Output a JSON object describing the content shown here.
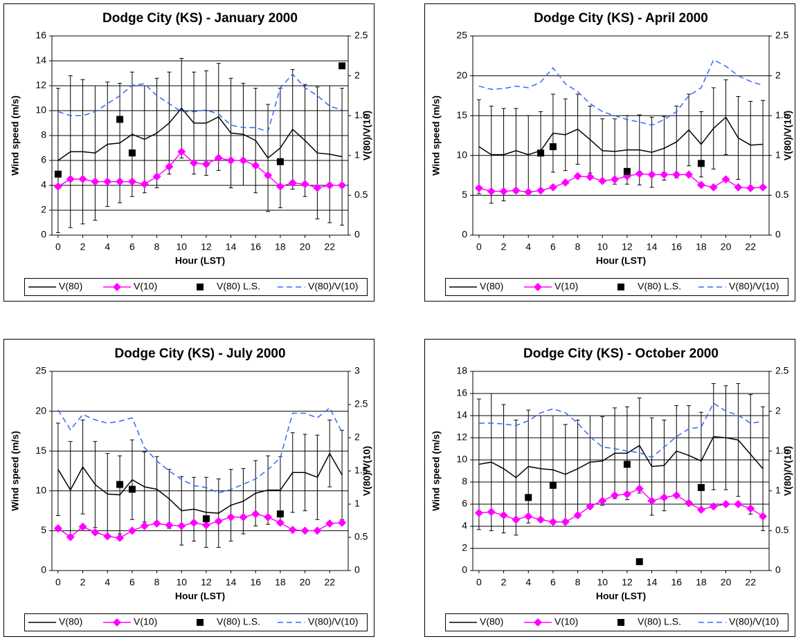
{
  "chart_data": [
    {
      "type": "line",
      "title": "Dodge City (KS) - January 2000",
      "xlabel": "Hour (LST)",
      "ylabel": "Wind speed (m/s)",
      "y2label": "V(80)/V(10)",
      "x": [
        0,
        1,
        2,
        3,
        4,
        5,
        6,
        7,
        8,
        9,
        10,
        11,
        12,
        13,
        14,
        15,
        16,
        17,
        18,
        19,
        20,
        21,
        22,
        23
      ],
      "xlim": [
        -0.5,
        23.5
      ],
      "xticks": [
        0,
        2,
        4,
        6,
        8,
        10,
        12,
        14,
        16,
        18,
        20,
        22
      ],
      "ylim": [
        0,
        16
      ],
      "yticks": [
        0,
        2,
        4,
        6,
        8,
        10,
        12,
        14,
        16
      ],
      "y2lim": [
        0,
        2.5
      ],
      "y2ticks": [
        0,
        0.5,
        1,
        1.5,
        2,
        2.5
      ],
      "grid": true,
      "series": [
        {
          "name": "V(80)",
          "color": "#000000",
          "line_style": "solid",
          "marker": "none",
          "values": [
            6.0,
            6.7,
            6.7,
            6.6,
            7.3,
            7.4,
            8.1,
            7.7,
            8.2,
            9.0,
            10.2,
            9.0,
            9.0,
            9.5,
            8.2,
            8.1,
            7.6,
            6.2,
            7.0,
            8.5,
            7.6,
            6.6,
            6.5,
            6.3
          ],
          "errors": [
            5.8,
            6.1,
            5.8,
            5.4,
            5.0,
            4.8,
            5.0,
            4.3,
            4.4,
            4.1,
            4.0,
            4.1,
            4.2,
            4.3,
            4.4,
            4.1,
            4.2,
            4.3,
            4.8,
            4.8,
            4.5,
            5.3,
            5.5,
            5.5
          ]
        },
        {
          "name": "V(10)",
          "color": "#ff00ff",
          "line_style": "solid",
          "marker": "diamond",
          "values": [
            3.9,
            4.5,
            4.5,
            4.3,
            4.3,
            4.3,
            4.3,
            4.1,
            4.7,
            5.5,
            6.7,
            5.8,
            5.7,
            6.2,
            6.0,
            6.0,
            5.6,
            4.8,
            3.9,
            4.2,
            4.1,
            3.8,
            4.0,
            4.0
          ]
        },
        {
          "name": "V(80) L.S.",
          "color": "#000000",
          "line_style": "none",
          "marker": "square",
          "values": [
            4.9,
            null,
            null,
            null,
            null,
            9.3,
            6.6,
            null,
            null,
            null,
            null,
            null,
            null,
            null,
            null,
            null,
            null,
            null,
            5.9,
            null,
            null,
            null,
            null,
            13.6
          ]
        },
        {
          "name": "V(80)/V(10)",
          "color": "#3366ff",
          "line_style": "dashed",
          "marker": "none",
          "axis": "y2",
          "values": [
            1.55,
            1.5,
            1.5,
            1.55,
            1.65,
            1.75,
            1.88,
            1.9,
            1.75,
            1.65,
            1.55,
            1.55,
            1.57,
            1.52,
            1.38,
            1.35,
            1.35,
            1.3,
            1.85,
            2.02,
            1.85,
            1.75,
            1.62,
            1.57
          ]
        }
      ]
    },
    {
      "type": "line",
      "title": "Dodge City (KS) - April 2000",
      "xlabel": "Hour (LST)",
      "ylabel": "Wind speed (m/s)",
      "y2label": "V(80)/V(10)",
      "x": [
        0,
        1,
        2,
        3,
        4,
        5,
        6,
        7,
        8,
        9,
        10,
        11,
        12,
        13,
        14,
        15,
        16,
        17,
        18,
        19,
        20,
        21,
        22,
        23
      ],
      "xlim": [
        -0.5,
        23.5
      ],
      "xticks": [
        0,
        2,
        4,
        6,
        8,
        10,
        12,
        14,
        16,
        18,
        20,
        22
      ],
      "ylim": [
        0,
        25
      ],
      "yticks": [
        0,
        5,
        10,
        15,
        20,
        25
      ],
      "y2lim": [
        0,
        2.5
      ],
      "y2ticks": [
        0,
        0.5,
        1,
        1.5,
        2,
        2.5
      ],
      "grid": true,
      "series": [
        {
          "name": "V(80)",
          "color": "#000000",
          "line_style": "solid",
          "marker": "none",
          "values": [
            11.1,
            10.1,
            10.1,
            10.6,
            10.1,
            10.6,
            12.8,
            12.6,
            13.3,
            12.0,
            10.6,
            10.5,
            10.7,
            10.7,
            10.4,
            10.9,
            11.7,
            13.2,
            11.4,
            13.4,
            14.8,
            12.2,
            11.3,
            11.4
          ],
          "errors": [
            5.9,
            6.1,
            5.8,
            5.3,
            4.9,
            4.9,
            4.9,
            4.5,
            4.4,
            4.2,
            4.0,
            4.1,
            4.3,
            4.4,
            4.4,
            4.0,
            4.5,
            4.5,
            4.1,
            5.1,
            4.7,
            5.2,
            5.5,
            5.5
          ]
        },
        {
          "name": "V(10)",
          "color": "#ff00ff",
          "line_style": "solid",
          "marker": "diamond",
          "values": [
            5.9,
            5.5,
            5.5,
            5.6,
            5.4,
            5.6,
            6.0,
            6.6,
            7.4,
            7.3,
            6.8,
            7.0,
            7.4,
            7.7,
            7.6,
            7.6,
            7.6,
            7.6,
            6.3,
            6.0,
            7.0,
            6.0,
            5.9,
            6.0
          ]
        },
        {
          "name": "V(80) L.S.",
          "color": "#000000",
          "line_style": "none",
          "marker": "square",
          "values": [
            null,
            null,
            null,
            null,
            null,
            10.3,
            11.1,
            null,
            null,
            null,
            null,
            null,
            8.0,
            null,
            null,
            null,
            null,
            null,
            9.0,
            null,
            null,
            null,
            null,
            null
          ]
        },
        {
          "name": "V(80)/V(10)",
          "color": "#3366ff",
          "line_style": "dashed",
          "marker": "none",
          "axis": "y2",
          "values": [
            1.87,
            1.83,
            1.84,
            1.87,
            1.85,
            1.92,
            2.1,
            1.9,
            1.8,
            1.65,
            1.55,
            1.5,
            1.45,
            1.42,
            1.38,
            1.45,
            1.55,
            1.75,
            1.85,
            2.2,
            2.12,
            2.0,
            1.93,
            1.88
          ]
        }
      ]
    },
    {
      "type": "line",
      "title": "Dodge City (KS) - July 2000",
      "xlabel": "Hour (LST)",
      "ylabel": "Wind speed (m/s)",
      "y2label": "V(80)/V(10)",
      "x": [
        0,
        1,
        2,
        3,
        4,
        5,
        6,
        7,
        8,
        9,
        10,
        11,
        12,
        13,
        14,
        15,
        16,
        17,
        18,
        19,
        20,
        21,
        22,
        23
      ],
      "xlim": [
        -0.5,
        23.5
      ],
      "xticks": [
        0,
        2,
        4,
        6,
        8,
        10,
        12,
        14,
        16,
        18,
        20,
        22
      ],
      "ylim": [
        0,
        25
      ],
      "yticks": [
        0,
        5,
        10,
        15,
        20,
        25
      ],
      "y2lim": [
        0,
        3
      ],
      "y2ticks": [
        0,
        0.5,
        1,
        1.5,
        2,
        2.5,
        3
      ],
      "grid": true,
      "series": [
        {
          "name": "V(80)",
          "color": "#000000",
          "line_style": "solid",
          "marker": "none",
          "values": [
            12.7,
            10.1,
            13.0,
            10.8,
            9.6,
            9.5,
            11.4,
            10.5,
            10.2,
            9.0,
            7.5,
            7.7,
            7.3,
            7.2,
            8.2,
            8.7,
            9.7,
            10.1,
            10.1,
            12.3,
            12.3,
            11.7,
            14.7,
            12.0
          ],
          "errors": [
            5.8,
            6.1,
            5.9,
            5.4,
            5.1,
            4.9,
            5.0,
            4.4,
            4.1,
            3.7,
            4.3,
            4.0,
            4.4,
            4.3,
            4.5,
            4.1,
            4.1,
            4.3,
            4.2,
            5.0,
            4.8,
            5.3,
            4.2,
            5.6
          ]
        },
        {
          "name": "V(10)",
          "color": "#ff00ff",
          "line_style": "solid",
          "marker": "diamond",
          "values": [
            5.3,
            4.2,
            5.5,
            4.8,
            4.3,
            4.1,
            5.0,
            5.6,
            5.9,
            5.7,
            5.6,
            6.0,
            5.7,
            6.2,
            6.7,
            6.7,
            7.1,
            6.7,
            6.0,
            5.1,
            5.0,
            5.0,
            5.9,
            6.0
          ]
        },
        {
          "name": "V(80) L.S.",
          "color": "#000000",
          "line_style": "none",
          "marker": "square",
          "values": [
            null,
            null,
            null,
            null,
            null,
            10.8,
            10.2,
            null,
            null,
            null,
            null,
            null,
            6.5,
            null,
            null,
            null,
            null,
            null,
            7.1,
            null,
            null,
            null,
            null,
            null
          ]
        },
        {
          "name": "V(80)/V(10)",
          "color": "#3366ff",
          "line_style": "dashed",
          "marker": "none",
          "axis": "y2",
          "values": [
            2.42,
            2.12,
            2.35,
            2.27,
            2.22,
            2.25,
            2.3,
            1.85,
            1.65,
            1.5,
            1.37,
            1.28,
            1.25,
            1.17,
            1.22,
            1.3,
            1.38,
            1.52,
            1.7,
            2.37,
            2.37,
            2.3,
            2.45,
            2.08
          ]
        }
      ]
    },
    {
      "type": "line",
      "title": "Dodge City (KS) - October 2000",
      "xlabel": "Hour (LST)",
      "ylabel": "Wind speed (m/s)",
      "y2label": "V(80)/V(10)",
      "x": [
        0,
        1,
        2,
        3,
        4,
        5,
        6,
        7,
        8,
        9,
        10,
        11,
        12,
        13,
        14,
        15,
        16,
        17,
        18,
        19,
        20,
        21,
        22,
        23
      ],
      "xlim": [
        -0.5,
        23.5
      ],
      "xticks": [
        0,
        2,
        4,
        6,
        8,
        10,
        12,
        14,
        16,
        18,
        20,
        22
      ],
      "ylim": [
        0,
        18
      ],
      "yticks": [
        0,
        2,
        4,
        6,
        8,
        10,
        12,
        14,
        16,
        18
      ],
      "y2lim": [
        0,
        2.5
      ],
      "y2ticks": [
        0,
        0.5,
        1,
        1.5,
        2,
        2.5
      ],
      "grid": true,
      "series": [
        {
          "name": "V(80)",
          "color": "#000000",
          "line_style": "solid",
          "marker": "none",
          "values": [
            9.6,
            9.8,
            9.2,
            8.4,
            9.4,
            9.2,
            9.1,
            8.7,
            9.2,
            9.8,
            9.9,
            10.6,
            10.6,
            11.3,
            9.4,
            9.5,
            10.8,
            10.4,
            9.9,
            12.1,
            12.0,
            11.8,
            10.5,
            9.2
          ],
          "errors": [
            5.9,
            6.2,
            5.8,
            5.2,
            5.1,
            4.8,
            4.9,
            4.5,
            4.4,
            4.2,
            4.0,
            4.1,
            4.2,
            4.3,
            4.4,
            4.1,
            4.1,
            4.5,
            4.4,
            4.8,
            4.7,
            5.1,
            5.4,
            5.6
          ]
        },
        {
          "name": "V(10)",
          "color": "#ff00ff",
          "line_style": "solid",
          "marker": "diamond",
          "values": [
            5.2,
            5.3,
            5.0,
            4.6,
            4.9,
            4.6,
            4.4,
            4.4,
            5.0,
            5.8,
            6.3,
            6.8,
            6.9,
            7.4,
            6.3,
            6.6,
            6.8,
            6.1,
            5.5,
            5.8,
            6.0,
            6.0,
            5.6,
            4.9
          ]
        },
        {
          "name": "V(80) L.S.",
          "color": "#000000",
          "line_style": "none",
          "marker": "square",
          "values": [
            null,
            null,
            null,
            null,
            6.6,
            null,
            7.7,
            null,
            null,
            null,
            null,
            null,
            9.6,
            0.8,
            null,
            null,
            null,
            null,
            7.5,
            null,
            null,
            null,
            null,
            null
          ]
        },
        {
          "name": "V(80)/V(10)",
          "color": "#3366ff",
          "line_style": "dashed",
          "marker": "none",
          "axis": "y2",
          "values": [
            1.85,
            1.85,
            1.84,
            1.82,
            1.88,
            1.98,
            2.03,
            1.98,
            1.85,
            1.68,
            1.55,
            1.53,
            1.5,
            1.48,
            1.42,
            1.55,
            1.68,
            1.78,
            1.8,
            2.1,
            2.0,
            1.95,
            1.85,
            1.87
          ]
        }
      ]
    }
  ]
}
